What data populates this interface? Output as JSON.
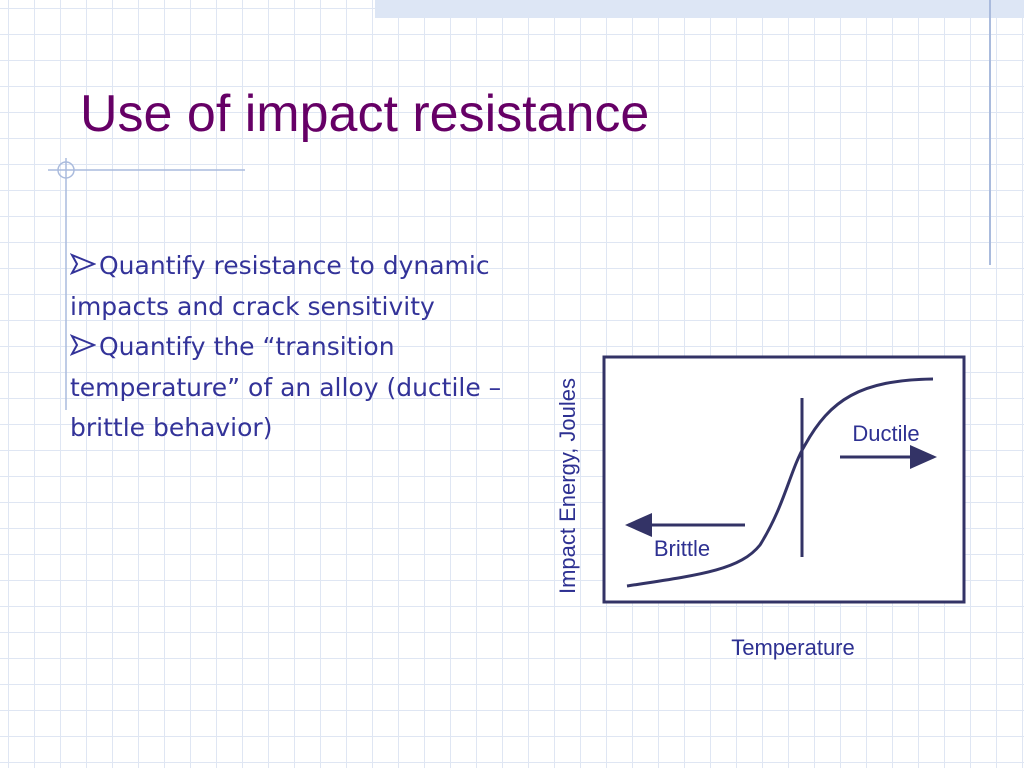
{
  "title": "Use of impact resistance",
  "bullets": [
    "Quantify resistance to dynamic impacts and crack sensitivity",
    "Quantify the “transition temperature” of an alloy (ductile – brittle behavior)"
  ],
  "diagram": {
    "y_label": "Impact Energy, Joules",
    "x_label": "Temperature",
    "ductile_label": "Ductile",
    "brittle_label": "Brittle"
  }
}
